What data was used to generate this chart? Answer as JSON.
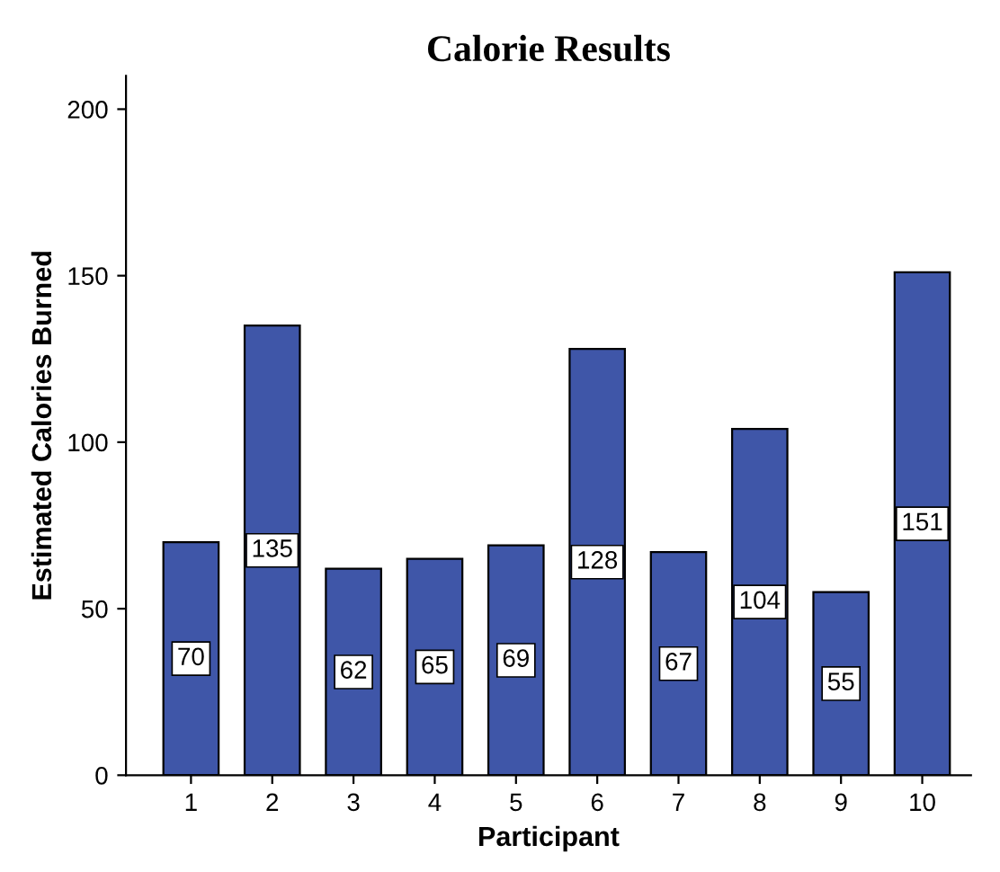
{
  "chart_data": {
    "type": "bar",
    "title": "Calorie Results",
    "xlabel": "Participant",
    "ylabel": "Estimated Calories Burned",
    "categories": [
      "1",
      "2",
      "3",
      "4",
      "5",
      "6",
      "7",
      "8",
      "9",
      "10"
    ],
    "values": [
      70,
      135,
      62,
      65,
      69,
      128,
      67,
      104,
      55,
      151
    ],
    "color": "#3f56a8",
    "data_labels": true,
    "ylim": [
      0,
      210
    ],
    "yticks": [
      0,
      50,
      100,
      150,
      200
    ],
    "grid": false,
    "legend": false
  }
}
